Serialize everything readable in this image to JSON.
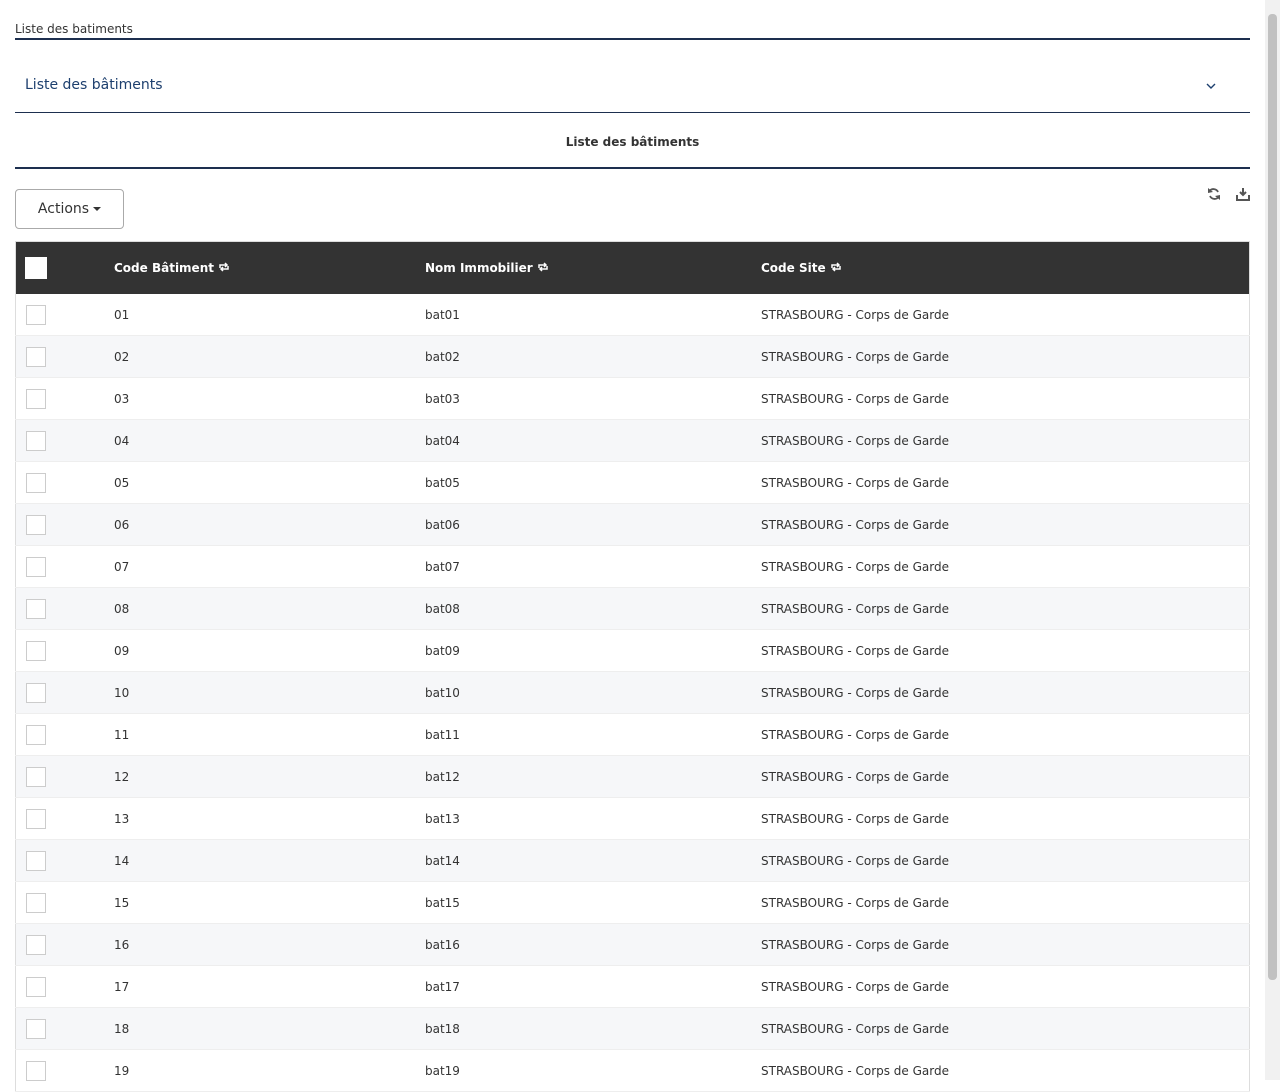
{
  "breadcrumb": "Liste des batiments",
  "panel": {
    "title": "Liste des bâtiments"
  },
  "section": {
    "title": "Liste des bâtiments"
  },
  "toolbar": {
    "actions": "Actions"
  },
  "table": {
    "headers": [
      "Code Bâtiment",
      "Nom Immobilier",
      "Code Site"
    ],
    "rows": [
      [
        "01",
        "bat01",
        "STRASBOURG - Corps de Garde"
      ],
      [
        "02",
        "bat02",
        "STRASBOURG - Corps de Garde"
      ],
      [
        "03",
        "bat03",
        "STRASBOURG - Corps de Garde"
      ],
      [
        "04",
        "bat04",
        "STRASBOURG - Corps de Garde"
      ],
      [
        "05",
        "bat05",
        "STRASBOURG - Corps de Garde"
      ],
      [
        "06",
        "bat06",
        "STRASBOURG - Corps de Garde"
      ],
      [
        "07",
        "bat07",
        "STRASBOURG - Corps de Garde"
      ],
      [
        "08",
        "bat08",
        "STRASBOURG - Corps de Garde"
      ],
      [
        "09",
        "bat09",
        "STRASBOURG - Corps de Garde"
      ],
      [
        "10",
        "bat10",
        "STRASBOURG - Corps de Garde"
      ],
      [
        "11",
        "bat11",
        "STRASBOURG - Corps de Garde"
      ],
      [
        "12",
        "bat12",
        "STRASBOURG - Corps de Garde"
      ],
      [
        "13",
        "bat13",
        "STRASBOURG - Corps de Garde"
      ],
      [
        "14",
        "bat14",
        "STRASBOURG - Corps de Garde"
      ],
      [
        "15",
        "bat15",
        "STRASBOURG - Corps de Garde"
      ],
      [
        "16",
        "bat16",
        "STRASBOURG - Corps de Garde"
      ],
      [
        "17",
        "bat17",
        "STRASBOURG - Corps de Garde"
      ],
      [
        "18",
        "bat18",
        "STRASBOURG - Corps de Garde"
      ],
      [
        "19",
        "bat19",
        "STRASBOURG - Corps de Garde"
      ]
    ]
  }
}
